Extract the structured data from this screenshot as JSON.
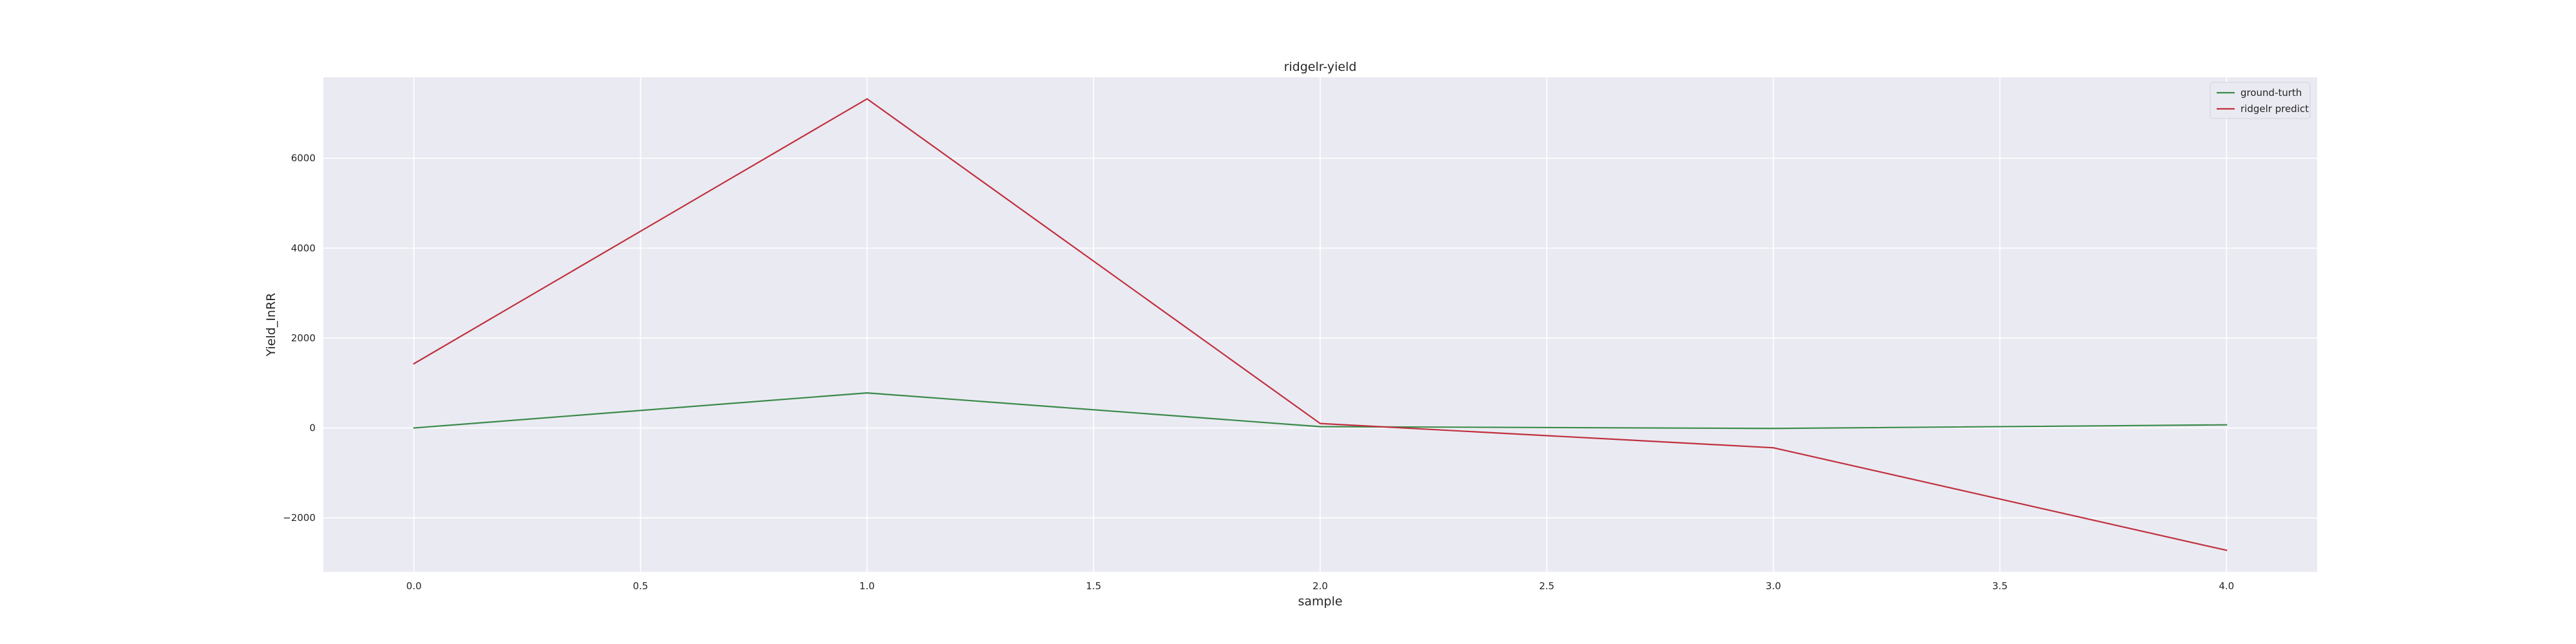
{
  "chart_data": {
    "type": "line",
    "title": "ridgelr-yield",
    "xlabel": "sample",
    "ylabel": "Yield_InRR",
    "x": [
      0,
      1,
      2,
      3,
      4
    ],
    "series": [
      {
        "name": "ground-turth",
        "color": "#3a8a4a",
        "values": [
          0,
          780,
          30,
          -10,
          70
        ]
      },
      {
        "name": "ridgelr predict",
        "color": "#c0303e",
        "values": [
          1430,
          7320,
          100,
          -440,
          -2720
        ]
      }
    ],
    "xlim": [
      -0.2,
      4.2
    ],
    "ylim": [
      -3200,
      7800
    ],
    "xticks": [
      0.0,
      0.5,
      1.0,
      1.5,
      2.0,
      2.5,
      3.0,
      3.5,
      4.0
    ],
    "xtick_labels": [
      "0.0",
      "0.5",
      "1.0",
      "1.5",
      "2.0",
      "2.5",
      "3.0",
      "3.5",
      "4.0"
    ],
    "yticks": [
      -2000,
      0,
      2000,
      4000,
      6000
    ],
    "ytick_labels": [
      "−2000",
      "0",
      "2000",
      "4000",
      "6000"
    ],
    "grid": true,
    "legend_position": "top-right",
    "background": "#eaeaf2"
  }
}
